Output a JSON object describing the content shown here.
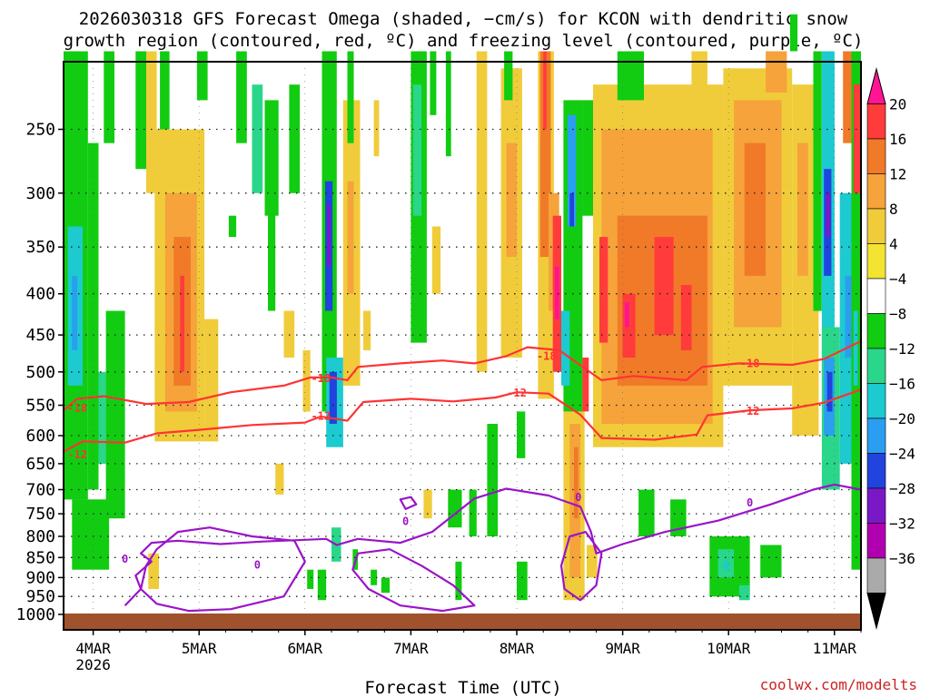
{
  "chart_data": {
    "type": "heatmap",
    "title_line1": "2026030318 GFS Forecast Omega (shaded, −cm/s) for KCON with dendritic snow",
    "title_line2": "growth region (contoured, red, ºC) and freezing level (contoured, purple, ºC)",
    "xlabel": "Forecast Time (UTC)",
    "credit": "coolwx.com/modelts",
    "x_ticks": [
      {
        "label": "4MAR",
        "day": 4
      },
      {
        "label": "5MAR",
        "day": 5
      },
      {
        "label": "6MAR",
        "day": 6
      },
      {
        "label": "7MAR",
        "day": 7
      },
      {
        "label": "8MAR",
        "day": 8
      },
      {
        "label": "9MAR",
        "day": 9
      },
      {
        "label": "10MAR",
        "day": 10
      },
      {
        "label": "11MAR",
        "day": 11
      }
    ],
    "x_year_label": "2026",
    "xlim": [
      3.72,
      11.25
    ],
    "y_ticks": [
      "250",
      "300",
      "350",
      "400",
      "450",
      "500",
      "550",
      "600",
      "650",
      "700",
      "750",
      "800",
      "850",
      "900",
      "950",
      "1000"
    ],
    "ylim": [
      200,
      1020
    ],
    "colorbar": {
      "labels": [
        "20",
        "16",
        "12",
        "8",
        "4",
        "−4",
        "−8",
        "−12",
        "−16",
        "−20",
        "−24",
        "−28",
        "−32",
        "−36"
      ],
      "colors": [
        "#ff1493",
        "#ff3b3b",
        "#f07a28",
        "#f5a33a",
        "#f0cc3a",
        "#f2e430",
        "#ffffff",
        "#11cc11",
        "#2ad68a",
        "#1ccad0",
        "#2a9ef0",
        "#2044dd",
        "#7a18c8",
        "#b000b0",
        "#aaaaaa",
        "#000000"
      ]
    },
    "series": [
      {
        "name": "-18C isotherm",
        "color": "#ff3333",
        "label": "-18",
        "points": [
          [
            3.72,
            558
          ],
          [
            3.85,
            540
          ],
          [
            4.1,
            536
          ],
          [
            4.5,
            548
          ],
          [
            4.9,
            545
          ],
          [
            5.3,
            530
          ],
          [
            5.8,
            520
          ],
          [
            6.05,
            508
          ],
          [
            6.25,
            508
          ],
          [
            6.4,
            512
          ],
          [
            6.5,
            493
          ],
          [
            6.9,
            488
          ],
          [
            7.3,
            484
          ],
          [
            7.6,
            488
          ],
          [
            7.9,
            478
          ],
          [
            8.1,
            466
          ],
          [
            8.4,
            470
          ],
          [
            8.8,
            512
          ],
          [
            9.1,
            506
          ],
          [
            9.6,
            512
          ],
          [
            9.75,
            493
          ],
          [
            10.1,
            488
          ],
          [
            10.6,
            490
          ],
          [
            10.9,
            482
          ],
          [
            11.25,
            458
          ]
        ],
        "label_positions": [
          [
            3.85,
            553
          ],
          [
            6.15,
            508
          ],
          [
            8.28,
            477
          ],
          [
            10.2,
            487
          ]
        ]
      },
      {
        "name": "-12C isotherm",
        "color": "#ff3333",
        "label": "-12",
        "points": [
          [
            3.72,
            628
          ],
          [
            3.9,
            610
          ],
          [
            4.3,
            612
          ],
          [
            4.6,
            596
          ],
          [
            5.0,
            590
          ],
          [
            5.5,
            582
          ],
          [
            6.0,
            578
          ],
          [
            6.15,
            568
          ],
          [
            6.4,
            575
          ],
          [
            6.55,
            545
          ],
          [
            7.0,
            540
          ],
          [
            7.4,
            544
          ],
          [
            7.8,
            538
          ],
          [
            8.0,
            530
          ],
          [
            8.3,
            532
          ],
          [
            8.6,
            565
          ],
          [
            8.8,
            604
          ],
          [
            9.3,
            607
          ],
          [
            9.7,
            598
          ],
          [
            9.8,
            566
          ],
          [
            10.2,
            558
          ],
          [
            10.6,
            555
          ],
          [
            10.9,
            546
          ],
          [
            11.25,
            526
          ]
        ],
        "label_positions": [
          [
            3.85,
            632
          ],
          [
            6.15,
            566
          ],
          [
            8.0,
            530
          ],
          [
            10.2,
            558
          ]
        ]
      },
      {
        "name": "0C freezing level",
        "color": "#9a14c8",
        "label": "0",
        "points": [
          [
            4.3,
            975
          ],
          [
            4.45,
            930
          ],
          [
            4.4,
            895
          ],
          [
            4.55,
            860
          ],
          [
            4.45,
            840
          ],
          [
            4.55,
            815
          ],
          [
            4.8,
            810
          ],
          [
            5.2,
            818
          ],
          [
            5.6,
            812
          ],
          [
            6.0,
            808
          ],
          [
            6.2,
            806
          ],
          [
            6.3,
            820
          ],
          [
            6.5,
            806
          ],
          [
            6.9,
            815
          ],
          [
            7.2,
            790
          ],
          [
            7.6,
            718
          ],
          [
            7.9,
            698
          ],
          [
            8.3,
            712
          ],
          [
            8.6,
            735
          ],
          [
            8.7,
            790
          ],
          [
            8.75,
            840
          ],
          [
            9.0,
            818
          ],
          [
            9.4,
            790
          ],
          [
            9.9,
            765
          ],
          [
            10.4,
            730
          ],
          [
            10.8,
            700
          ],
          [
            11.0,
            690
          ],
          [
            11.25,
            700
          ]
        ],
        "label_positions": [
          [
            4.3,
            852
          ],
          [
            5.55,
            866
          ],
          [
            6.95,
            765
          ],
          [
            8.58,
            714
          ],
          [
            10.2,
            725
          ]
        ]
      }
    ],
    "notes": "Omega shading is a dense field; shown with representative shaded cells."
  }
}
